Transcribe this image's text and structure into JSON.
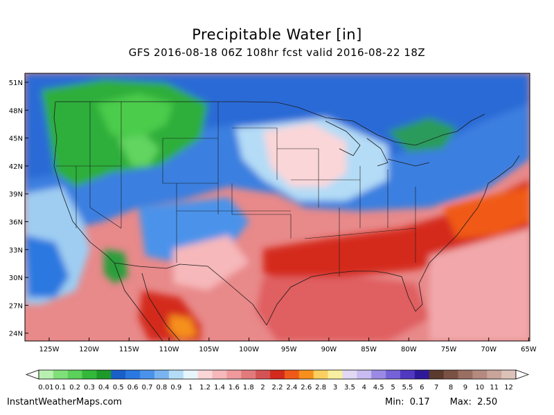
{
  "title": "Precipitable Water [in]",
  "subtitle": "GFS 2016-08-18 06Z 108hr fcst valid 2016-08-22 18Z",
  "map": {
    "lat_labels": [
      "51N",
      "48N",
      "45N",
      "42N",
      "39N",
      "36N",
      "33N",
      "30N",
      "27N",
      "24N"
    ],
    "lon_labels": [
      "125W",
      "120W",
      "115W",
      "110W",
      "105W",
      "100W",
      "95W",
      "90W",
      "85W",
      "80W",
      "75W",
      "70W",
      "65W"
    ]
  },
  "colorbar": {
    "labels": [
      "0.01",
      "0.1",
      "0.2",
      "0.3",
      "0.4",
      "0.5",
      "0.6",
      "0.7",
      "0.8",
      "0.9",
      "1",
      "1.2",
      "1.4",
      "1.6",
      "1.8",
      "2",
      "2.2",
      "2.4",
      "2.6",
      "2.8",
      "3",
      "3.5",
      "4",
      "4.5",
      "5",
      "5.5",
      "6",
      "7",
      "8",
      "9",
      "10",
      "11",
      "12"
    ],
    "colors": [
      "#b8f0b0",
      "#7fe07a",
      "#5bd05a",
      "#33b83a",
      "#1e9a2a",
      "#1a5fc8",
      "#2a78e0",
      "#4b93ea",
      "#7ab4f0",
      "#b4dcf6",
      "#e6f6fb",
      "#fbd6d8",
      "#f6b8ba",
      "#ee9a9c",
      "#e27a7c",
      "#d45456",
      "#d42a1c",
      "#f05a18",
      "#f6901c",
      "#fbd060",
      "#f8f0a0",
      "#e2d8f4",
      "#c8bcf0",
      "#9a8ae4",
      "#7462d6",
      "#5038c0",
      "#2e1a98",
      "#5a3a2c",
      "#7a5244",
      "#9a6e62",
      "#b48a80",
      "#c8a49a",
      "#dcc2b8"
    ]
  },
  "footer": {
    "site": "InstantWeatherMaps.com",
    "min_label": "Min:",
    "min_value": "0.17",
    "max_label": "Max:",
    "max_value": "2.50"
  }
}
